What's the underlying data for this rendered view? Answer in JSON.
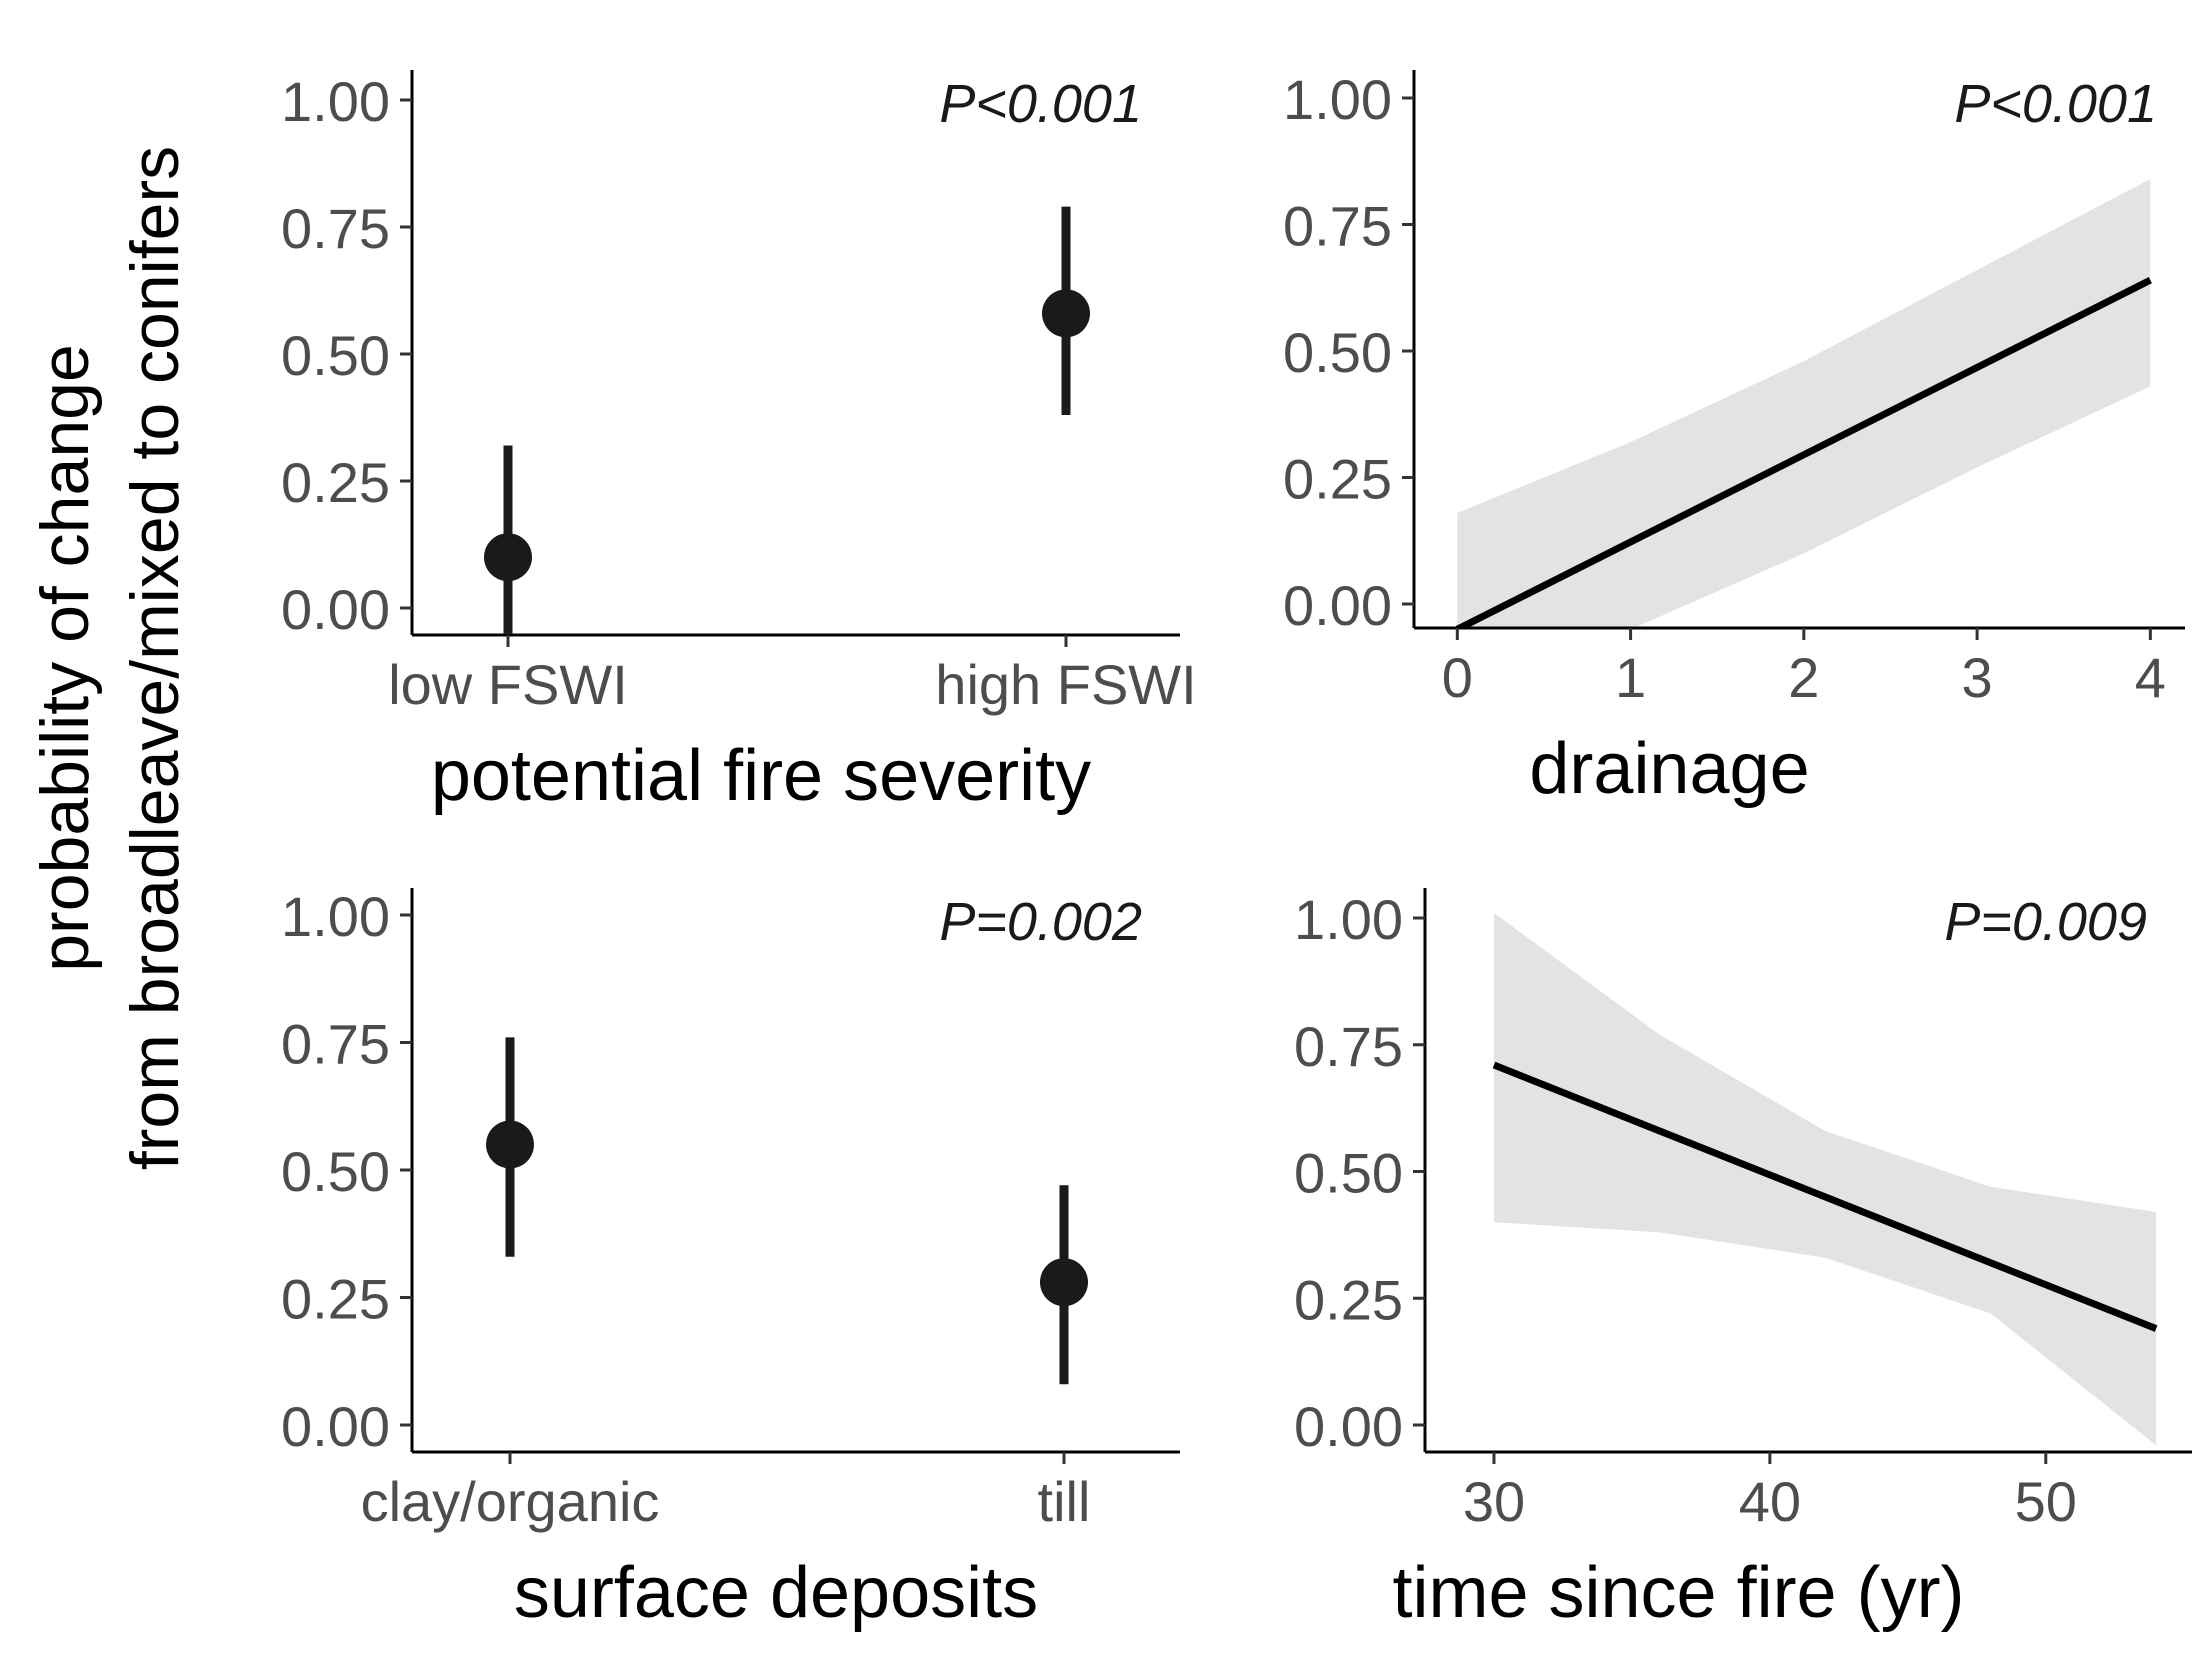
{
  "figure": {
    "ylabel_line1": "probability of change",
    "ylabel_line2": "from broadleave/mixed to conifers"
  },
  "colors": {
    "point": "#1a1a1a",
    "line": "#000000",
    "ribbon": "#e3e3e3",
    "tick_text": "#4d4d4d"
  },
  "chart_data": [
    {
      "type": "pointrange",
      "xlabel": "potential fire severity",
      "categories": [
        "low FSWI",
        "high FSWI"
      ],
      "values": [
        0.1,
        0.58
      ],
      "lower": [
        -0.05,
        0.38
      ],
      "upper": [
        0.32,
        0.79
      ],
      "ylim": [
        -0.05,
        1.05
      ],
      "yticks": [
        "0.00",
        "0.25",
        "0.50",
        "0.75",
        "1.00"
      ],
      "pvalue": "P<0.001"
    },
    {
      "type": "line",
      "xlabel": "drainage",
      "x": [
        0,
        4
      ],
      "y": [
        -0.05,
        0.64
      ],
      "ribbon": {
        "x": [
          0,
          1,
          2,
          3,
          4
        ],
        "lower": [
          -0.05,
          -0.05,
          0.1,
          0.27,
          0.43
        ],
        "upper": [
          0.18,
          0.32,
          0.48,
          0.66,
          0.84
        ]
      },
      "xticks": [
        "0",
        "1",
        "2",
        "3",
        "4"
      ],
      "xlim": [
        -0.25,
        4.2
      ],
      "ylim": [
        -0.05,
        1.05
      ],
      "yticks": [
        "0.00",
        "0.25",
        "0.50",
        "0.75",
        "1.00"
      ],
      "pvalue": "P<0.001"
    },
    {
      "type": "pointrange",
      "xlabel": "surface deposits",
      "categories": [
        "clay/organic",
        "till"
      ],
      "values": [
        0.55,
        0.28
      ],
      "lower": [
        0.33,
        0.08
      ],
      "upper": [
        0.76,
        0.47
      ],
      "ylim": [
        -0.05,
        1.05
      ],
      "yticks": [
        "0.00",
        "0.25",
        "0.50",
        "0.75",
        "1.00"
      ],
      "pvalue": "P=0.002"
    },
    {
      "type": "line",
      "xlabel": "time since fire (yr)",
      "x": [
        30,
        54
      ],
      "y": [
        0.71,
        0.19
      ],
      "ribbon": {
        "x": [
          30,
          36,
          42,
          48,
          54
        ],
        "lower": [
          0.4,
          0.38,
          0.33,
          0.22,
          -0.04
        ],
        "upper": [
          1.01,
          0.77,
          0.58,
          0.47,
          0.42
        ]
      },
      "xticks": [
        "30",
        "40",
        "50"
      ],
      "xlim": [
        27.5,
        55.3
      ],
      "ylim": [
        -0.05,
        1.05
      ],
      "yticks": [
        "0.00",
        "0.25",
        "0.50",
        "0.75",
        "1.00"
      ],
      "pvalue": "P=0.009"
    }
  ]
}
